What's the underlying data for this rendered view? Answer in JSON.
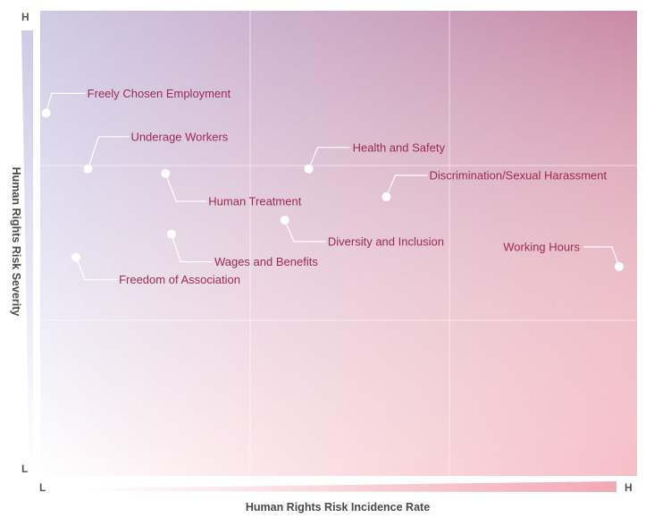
{
  "chart_data": {
    "type": "scatter",
    "title": "",
    "xlabel": "Human Rights Risk Incidence Rate",
    "ylabel": "Human Rights Risk Severity",
    "x_ticks": {
      "low": "L",
      "high": "H"
    },
    "y_ticks": {
      "low": "L",
      "high": "H"
    },
    "xlim": [
      0,
      1
    ],
    "ylim": [
      0,
      1
    ],
    "grid": "3x3",
    "colors": {
      "low_corner": "#ffffff",
      "top_left": "#cfcbe6",
      "top_right": "#c98aa4",
      "bottom_right": "#f2a9b5",
      "label_text": "#9c2a52",
      "leader_line": "#ffffff",
      "point": "#ffffff",
      "axis_text": "#4a4a4a"
    },
    "points": [
      {
        "label": "Freely Chosen Employment",
        "x": 0.01,
        "y": 0.78
      },
      {
        "label": "Underage Workers",
        "x": 0.08,
        "y": 0.66
      },
      {
        "label": "Human Treatment",
        "x": 0.21,
        "y": 0.65
      },
      {
        "label": "Health and Safety",
        "x": 0.45,
        "y": 0.66
      },
      {
        "label": "Discrimination/Sexual Harassment",
        "x": 0.58,
        "y": 0.6
      },
      {
        "label": "Diversity and Inclusion",
        "x": 0.41,
        "y": 0.55
      },
      {
        "label": "Wages and Benefits",
        "x": 0.22,
        "y": 0.52
      },
      {
        "label": "Freedom of Association",
        "x": 0.06,
        "y": 0.47
      },
      {
        "label": "Working Hours",
        "x": 0.97,
        "y": 0.45
      }
    ]
  }
}
